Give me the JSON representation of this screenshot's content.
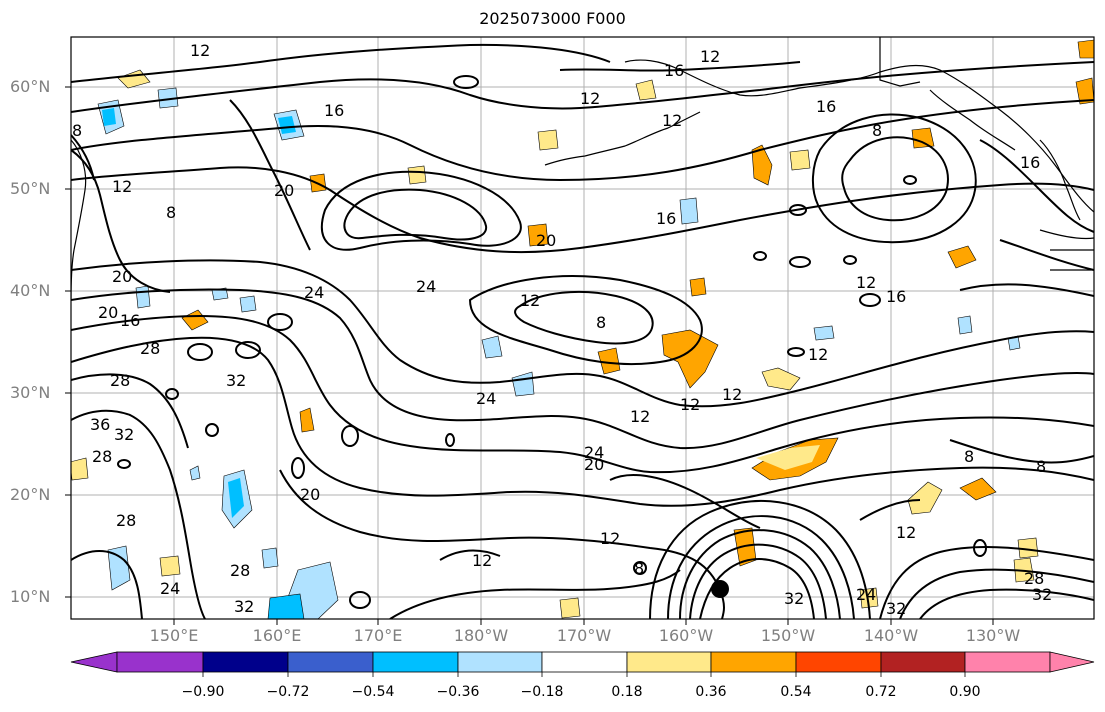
{
  "title": "2025073000 F000",
  "map": {
    "lat_labels": [
      "60°N",
      "50°N",
      "40°N",
      "30°N",
      "20°N",
      "10°N"
    ],
    "lon_labels": [
      "150°E",
      "160°E",
      "170°E",
      "180°W",
      "170°W",
      "160°W",
      "150°W",
      "140°W",
      "130°W"
    ],
    "contour_labels": [
      "12",
      "16",
      "8",
      "20",
      "24",
      "28",
      "32",
      "36",
      "12",
      "16",
      "20",
      "24",
      "8",
      "12",
      "16",
      "24",
      "28",
      "32"
    ],
    "contour_color": "#000000",
    "coastline_color": "#000000",
    "grid_color": "#b0b0b0",
    "marker": "storm-center-dot"
  },
  "colorbar": {
    "tick_labels": [
      "−0.90",
      "−0.72",
      "−0.54",
      "−0.36",
      "−0.18",
      "0.18",
      "0.36",
      "0.54",
      "0.72",
      "0.90"
    ],
    "colors": [
      "#9932cc",
      "#00008b",
      "#3a5fcd",
      "#00bfff",
      "#b0e2ff",
      "#ffffff",
      "#ffe98a",
      "#ffa500",
      "#ff4500",
      "#b22222",
      "#ff82ab"
    ]
  }
}
